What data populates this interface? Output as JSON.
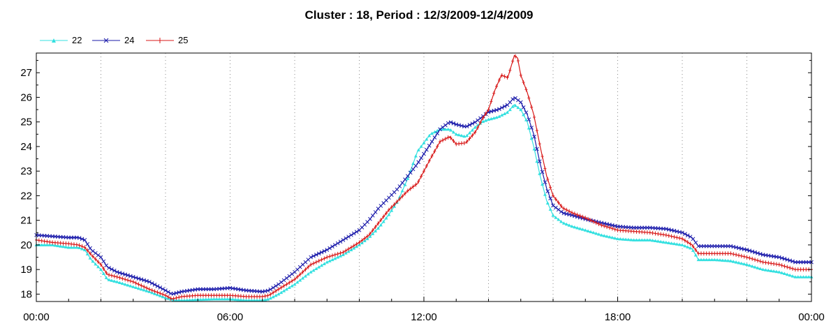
{
  "chart_data": {
    "type": "line",
    "title": "Cluster : 18, Period : 12/3/2009-12/4/2009",
    "xlabel": "",
    "ylabel": "",
    "x_tick_labels": [
      "00:00",
      "06:00",
      "12:00",
      "18:00",
      "00:00"
    ],
    "xlim_hours": [
      0,
      24
    ],
    "ylim": [
      17.7,
      27.8
    ],
    "y_ticks": [
      18,
      19,
      20,
      21,
      22,
      23,
      24,
      25,
      26,
      27
    ],
    "grid": "vertical dotted lines every 2 hours",
    "legend_position": "top-left",
    "series": [
      {
        "name": "22",
        "color": "#33e0e0",
        "marker": "triangle",
        "points": [
          [
            0,
            20.0
          ],
          [
            0.5,
            20.0
          ],
          [
            1.0,
            19.9
          ],
          [
            1.3,
            19.9
          ],
          [
            1.5,
            19.8
          ],
          [
            1.7,
            19.4
          ],
          [
            2.0,
            19.0
          ],
          [
            2.2,
            18.6
          ],
          [
            2.5,
            18.5
          ],
          [
            3.0,
            18.3
          ],
          [
            3.5,
            18.1
          ],
          [
            4.0,
            17.85
          ],
          [
            4.3,
            17.75
          ],
          [
            4.6,
            17.75
          ],
          [
            5.0,
            17.78
          ],
          [
            5.5,
            17.8
          ],
          [
            6.0,
            17.8
          ],
          [
            6.5,
            17.75
          ],
          [
            7.0,
            17.75
          ],
          [
            7.2,
            17.8
          ],
          [
            7.5,
            18.0
          ],
          [
            8.0,
            18.4
          ],
          [
            8.5,
            18.9
          ],
          [
            9.0,
            19.3
          ],
          [
            9.5,
            19.6
          ],
          [
            10.0,
            20.0
          ],
          [
            10.3,
            20.3
          ],
          [
            10.6,
            20.7
          ],
          [
            10.9,
            21.2
          ],
          [
            11.2,
            21.8
          ],
          [
            11.5,
            22.7
          ],
          [
            11.8,
            23.8
          ],
          [
            12.2,
            24.5
          ],
          [
            12.5,
            24.7
          ],
          [
            12.8,
            24.7
          ],
          [
            13.0,
            24.5
          ],
          [
            13.3,
            24.4
          ],
          [
            13.6,
            24.8
          ],
          [
            13.8,
            25.0
          ],
          [
            14.0,
            25.1
          ],
          [
            14.3,
            25.2
          ],
          [
            14.6,
            25.4
          ],
          [
            14.8,
            25.7
          ],
          [
            15.0,
            25.5
          ],
          [
            15.2,
            25.0
          ],
          [
            15.4,
            24.0
          ],
          [
            15.6,
            22.8
          ],
          [
            15.8,
            21.8
          ],
          [
            16.0,
            21.2
          ],
          [
            16.3,
            20.9
          ],
          [
            16.6,
            20.75
          ],
          [
            17.0,
            20.6
          ],
          [
            17.5,
            20.4
          ],
          [
            18.0,
            20.25
          ],
          [
            18.5,
            20.2
          ],
          [
            19.0,
            20.2
          ],
          [
            19.5,
            20.1
          ],
          [
            20.0,
            20.0
          ],
          [
            20.3,
            19.85
          ],
          [
            20.5,
            19.4
          ],
          [
            21.0,
            19.4
          ],
          [
            21.5,
            19.35
          ],
          [
            22.0,
            19.2
          ],
          [
            22.5,
            19.0
          ],
          [
            23.0,
            18.9
          ],
          [
            23.5,
            18.7
          ],
          [
            24.0,
            18.7
          ]
        ]
      },
      {
        "name": "24",
        "color": "#1a1aaa",
        "marker": "x",
        "points": [
          [
            0,
            20.4
          ],
          [
            0.5,
            20.35
          ],
          [
            1.0,
            20.3
          ],
          [
            1.3,
            20.3
          ],
          [
            1.5,
            20.2
          ],
          [
            1.7,
            19.8
          ],
          [
            2.0,
            19.5
          ],
          [
            2.2,
            19.1
          ],
          [
            2.5,
            18.9
          ],
          [
            3.0,
            18.7
          ],
          [
            3.5,
            18.5
          ],
          [
            4.0,
            18.15
          ],
          [
            4.2,
            18.0
          ],
          [
            4.5,
            18.1
          ],
          [
            5.0,
            18.2
          ],
          [
            5.5,
            18.2
          ],
          [
            6.0,
            18.25
          ],
          [
            6.5,
            18.15
          ],
          [
            7.0,
            18.1
          ],
          [
            7.2,
            18.15
          ],
          [
            7.5,
            18.4
          ],
          [
            8.0,
            18.9
          ],
          [
            8.5,
            19.5
          ],
          [
            9.0,
            19.8
          ],
          [
            9.5,
            20.2
          ],
          [
            10.0,
            20.6
          ],
          [
            10.3,
            21.0
          ],
          [
            10.6,
            21.5
          ],
          [
            10.9,
            21.9
          ],
          [
            11.2,
            22.3
          ],
          [
            11.5,
            22.8
          ],
          [
            11.8,
            23.3
          ],
          [
            12.2,
            24.1
          ],
          [
            12.5,
            24.7
          ],
          [
            12.8,
            25.0
          ],
          [
            13.0,
            24.9
          ],
          [
            13.3,
            24.8
          ],
          [
            13.6,
            25.0
          ],
          [
            13.8,
            25.2
          ],
          [
            14.0,
            25.4
          ],
          [
            14.3,
            25.5
          ],
          [
            14.6,
            25.7
          ],
          [
            14.8,
            26.0
          ],
          [
            15.0,
            25.8
          ],
          [
            15.2,
            25.3
          ],
          [
            15.4,
            24.5
          ],
          [
            15.6,
            23.3
          ],
          [
            15.8,
            22.3
          ],
          [
            16.0,
            21.6
          ],
          [
            16.3,
            21.3
          ],
          [
            16.6,
            21.2
          ],
          [
            17.0,
            21.05
          ],
          [
            17.5,
            20.9
          ],
          [
            18.0,
            20.75
          ],
          [
            18.5,
            20.7
          ],
          [
            19.0,
            20.7
          ],
          [
            19.5,
            20.65
          ],
          [
            20.0,
            20.5
          ],
          [
            20.3,
            20.3
          ],
          [
            20.5,
            19.95
          ],
          [
            21.0,
            19.95
          ],
          [
            21.5,
            19.95
          ],
          [
            22.0,
            19.8
          ],
          [
            22.5,
            19.6
          ],
          [
            23.0,
            19.5
          ],
          [
            23.5,
            19.3
          ],
          [
            24.0,
            19.3
          ]
        ]
      },
      {
        "name": "25",
        "color": "#d81a1a",
        "marker": "plus",
        "points": [
          [
            0,
            20.2
          ],
          [
            0.5,
            20.1
          ],
          [
            1.0,
            20.05
          ],
          [
            1.3,
            20.0
          ],
          [
            1.5,
            19.9
          ],
          [
            1.7,
            19.6
          ],
          [
            2.0,
            19.2
          ],
          [
            2.2,
            18.8
          ],
          [
            2.5,
            18.7
          ],
          [
            3.0,
            18.5
          ],
          [
            3.5,
            18.2
          ],
          [
            4.0,
            17.95
          ],
          [
            4.2,
            17.8
          ],
          [
            4.5,
            17.9
          ],
          [
            5.0,
            17.95
          ],
          [
            5.5,
            17.95
          ],
          [
            6.0,
            17.95
          ],
          [
            6.5,
            17.9
          ],
          [
            7.0,
            17.9
          ],
          [
            7.2,
            17.95
          ],
          [
            7.5,
            18.2
          ],
          [
            8.0,
            18.6
          ],
          [
            8.5,
            19.2
          ],
          [
            9.0,
            19.5
          ],
          [
            9.5,
            19.7
          ],
          [
            10.0,
            20.1
          ],
          [
            10.3,
            20.4
          ],
          [
            10.6,
            20.9
          ],
          [
            10.9,
            21.4
          ],
          [
            11.2,
            21.8
          ],
          [
            11.5,
            22.2
          ],
          [
            11.8,
            22.5
          ],
          [
            12.2,
            23.5
          ],
          [
            12.5,
            24.2
          ],
          [
            12.8,
            24.4
          ],
          [
            13.0,
            24.1
          ],
          [
            13.3,
            24.15
          ],
          [
            13.6,
            24.6
          ],
          [
            13.8,
            25.1
          ],
          [
            14.0,
            25.5
          ],
          [
            14.2,
            26.3
          ],
          [
            14.4,
            26.9
          ],
          [
            14.6,
            26.8
          ],
          [
            14.8,
            27.7
          ],
          [
            14.9,
            27.6
          ],
          [
            15.0,
            26.9
          ],
          [
            15.2,
            26.2
          ],
          [
            15.4,
            25.3
          ],
          [
            15.6,
            24.0
          ],
          [
            15.8,
            22.8
          ],
          [
            16.0,
            22.0
          ],
          [
            16.3,
            21.5
          ],
          [
            16.6,
            21.3
          ],
          [
            17.0,
            21.1
          ],
          [
            17.5,
            20.8
          ],
          [
            18.0,
            20.6
          ],
          [
            18.5,
            20.55
          ],
          [
            19.0,
            20.5
          ],
          [
            19.5,
            20.4
          ],
          [
            20.0,
            20.25
          ],
          [
            20.3,
            20.0
          ],
          [
            20.5,
            19.65
          ],
          [
            21.0,
            19.65
          ],
          [
            21.5,
            19.65
          ],
          [
            22.0,
            19.5
          ],
          [
            22.5,
            19.3
          ],
          [
            23.0,
            19.2
          ],
          [
            23.5,
            19.0
          ],
          [
            24.0,
            19.0
          ]
        ]
      }
    ]
  }
}
